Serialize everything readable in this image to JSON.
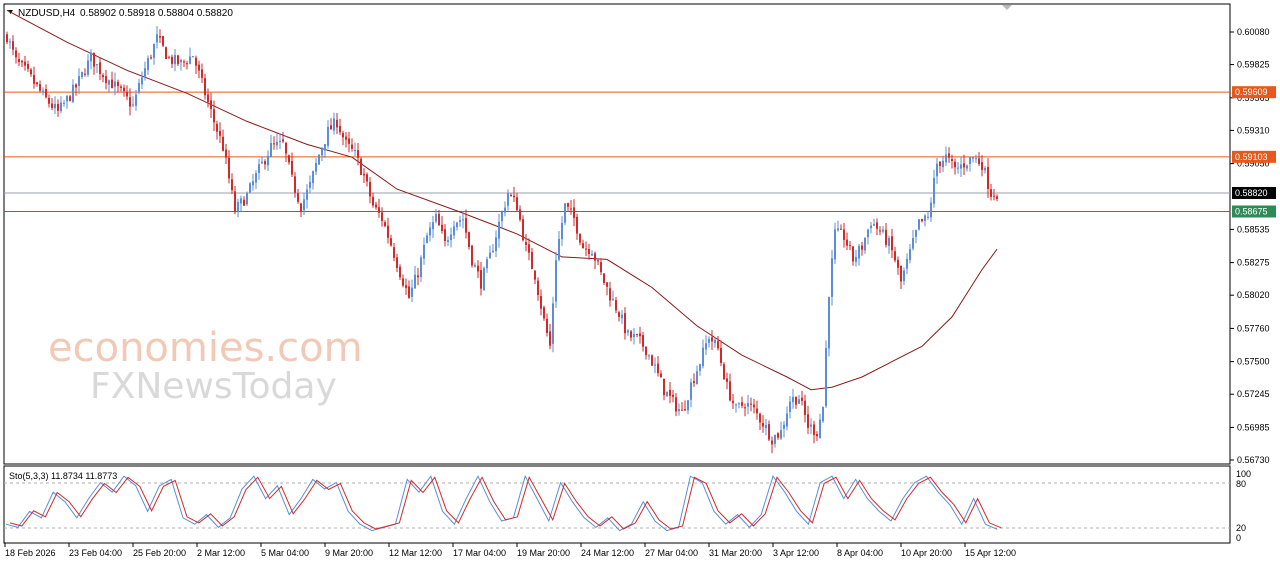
{
  "header": {
    "symbol": "NZDUSD,H4",
    "ohlc": "0.58902 0.58918 0.58804 0.58820"
  },
  "oscillator": {
    "label": "Sto(5,3,3) 11.8734 11.8773",
    "ticks": [
      "100",
      "80",
      "20",
      "0"
    ]
  },
  "watermark": {
    "line1": "economies.com",
    "line2": "FXNewsToday"
  },
  "price_axis_labels": [
    "0.60080",
    "0.59825",
    "0.59565",
    "0.59310",
    "0.59050",
    "0.58535",
    "0.58275",
    "0.58020",
    "0.57760",
    "0.57500",
    "0.57245",
    "0.56985",
    "0.56730"
  ],
  "time_axis_labels": [
    "18 Feb 2026",
    "23 Feb 04:00",
    "25 Feb 20:00",
    "2 Mar 12:00",
    "5 Mar 04:00",
    "9 Mar 20:00",
    "12 Mar 12:00",
    "17 Mar 04:00",
    "19 Mar 20:00",
    "24 Mar 12:00",
    "27 Mar 04:00",
    "31 Mar 20:00",
    "3 Apr 12:00",
    "8 Apr 04:00",
    "10 Apr 20:00",
    "15 Apr 12:00"
  ],
  "levels": [
    {
      "value": 0.59609,
      "label": "0.59609",
      "color": "#e8581c"
    },
    {
      "value": 0.59103,
      "label": "0.59103",
      "color": "#e8581c"
    },
    {
      "value": 0.5882,
      "label": "0.58820",
      "color": "#000000"
    },
    {
      "value": 0.58675,
      "label": "0.58675",
      "color": "#2e8b57"
    }
  ],
  "colors": {
    "bull": "#5b8dd9",
    "bear": "#d12a2a",
    "ma": "#8b1a1a",
    "stoch_main": "#5b8dd9",
    "stoch_signal": "#d12a2a"
  },
  "chart_data": {
    "type": "candlestick",
    "timeframe": "H4",
    "ylim": [
      0.5673,
      0.6008
    ],
    "path": [
      [
        0,
        0.6005
      ],
      [
        3,
        0.5985
      ],
      [
        7,
        0.5975
      ],
      [
        12,
        0.5958
      ],
      [
        17,
        0.5945
      ],
      [
        23,
        0.5965
      ],
      [
        28,
        0.5988
      ],
      [
        32,
        0.5975
      ],
      [
        37,
        0.5963
      ],
      [
        42,
        0.595
      ],
      [
        45,
        0.5973
      ],
      [
        50,
        0.6003
      ],
      [
        54,
        0.5987
      ],
      [
        58,
        0.5983
      ],
      [
        62,
        0.599
      ],
      [
        66,
        0.596
      ],
      [
        69,
        0.5938
      ],
      [
        72,
        0.5918
      ],
      [
        76,
        0.5868
      ],
      [
        80,
        0.588
      ],
      [
        84,
        0.59
      ],
      [
        88,
        0.5918
      ],
      [
        92,
        0.592
      ],
      [
        95,
        0.5892
      ],
      [
        98,
        0.5872
      ],
      [
        101,
        0.5888
      ],
      [
        104,
        0.5912
      ],
      [
        107,
        0.593
      ],
      [
        110,
        0.5938
      ],
      [
        113,
        0.592
      ],
      [
        116,
        0.5912
      ],
      [
        119,
        0.5895
      ],
      [
        122,
        0.5872
      ],
      [
        125,
        0.5862
      ],
      [
        128,
        0.5842
      ],
      [
        131,
        0.582
      ],
      [
        134,
        0.58
      ],
      [
        137,
        0.582
      ],
      [
        140,
        0.5848
      ],
      [
        143,
        0.5862
      ],
      [
        146,
        0.5842
      ],
      [
        149,
        0.586
      ],
      [
        152,
        0.5862
      ],
      [
        155,
        0.583
      ],
      [
        158,
        0.5812
      ],
      [
        161,
        0.5832
      ],
      [
        164,
        0.5858
      ],
      [
        167,
        0.5882
      ],
      [
        170,
        0.5872
      ],
      [
        173,
        0.5838
      ],
      [
        176,
        0.5818
      ],
      [
        179,
        0.5782
      ],
      [
        181,
        0.5762
      ],
      [
        183,
        0.5832
      ],
      [
        186,
        0.5872
      ],
      [
        189,
        0.5862
      ],
      [
        192,
        0.584
      ],
      [
        195,
        0.5838
      ],
      [
        198,
        0.5818
      ],
      [
        201,
        0.5802
      ],
      [
        204,
        0.5788
      ],
      [
        207,
        0.577
      ],
      [
        210,
        0.5768
      ],
      [
        213,
        0.576
      ],
      [
        216,
        0.5745
      ],
      [
        219,
        0.5728
      ],
      [
        222,
        0.5718
      ],
      [
        225,
        0.571
      ],
      [
        228,
        0.5732
      ],
      [
        231,
        0.575
      ],
      [
        234,
        0.577
      ],
      [
        237,
        0.576
      ],
      [
        240,
        0.573
      ],
      [
        243,
        0.5712
      ],
      [
        246,
        0.5718
      ],
      [
        249,
        0.5712
      ],
      [
        252,
        0.5702
      ],
      [
        255,
        0.569
      ],
      [
        258,
        0.5695
      ],
      [
        261,
        0.572
      ],
      [
        264,
        0.5722
      ],
      [
        267,
        0.57
      ],
      [
        270,
        0.5695
      ],
      [
        272,
        0.5715
      ],
      [
        274,
        0.5805
      ],
      [
        276,
        0.585
      ],
      [
        279,
        0.5848
      ],
      [
        282,
        0.583
      ],
      [
        285,
        0.584
      ],
      [
        288,
        0.586
      ],
      [
        291,
        0.5852
      ],
      [
        294,
        0.5842
      ],
      [
        296,
        0.583
      ],
      [
        298,
        0.5812
      ],
      [
        301,
        0.5835
      ],
      [
        304,
        0.5858
      ],
      [
        307,
        0.5862
      ],
      [
        310,
        0.5905
      ],
      [
        313,
        0.591
      ],
      [
        316,
        0.59
      ],
      [
        319,
        0.5905
      ],
      [
        322,
        0.591
      ],
      [
        325,
        0.5905
      ],
      [
        328,
        0.5882
      ],
      [
        330,
        0.5882
      ]
    ],
    "ma_path": [
      [
        0,
        0.6025
      ],
      [
        20,
        0.6
      ],
      [
        40,
        0.5978
      ],
      [
        60,
        0.596
      ],
      [
        80,
        0.5938
      ],
      [
        100,
        0.592
      ],
      [
        115,
        0.591
      ],
      [
        130,
        0.5885
      ],
      [
        150,
        0.5868
      ],
      [
        170,
        0.585
      ],
      [
        185,
        0.5832
      ],
      [
        200,
        0.583
      ],
      [
        215,
        0.5808
      ],
      [
        230,
        0.5778
      ],
      [
        245,
        0.5755
      ],
      [
        260,
        0.5738
      ],
      [
        268,
        0.5728
      ],
      [
        275,
        0.573
      ],
      [
        285,
        0.5738
      ],
      [
        295,
        0.575
      ],
      [
        305,
        0.5762
      ],
      [
        315,
        0.5785
      ],
      [
        325,
        0.5822
      ],
      [
        330,
        0.5838
      ]
    ],
    "stoch_path": [
      [
        0,
        20
      ],
      [
        4,
        15
      ],
      [
        8,
        40
      ],
      [
        12,
        30
      ],
      [
        16,
        70
      ],
      [
        20,
        55
      ],
      [
        24,
        30
      ],
      [
        28,
        60
      ],
      [
        32,
        85
      ],
      [
        36,
        70
      ],
      [
        40,
        95
      ],
      [
        44,
        80
      ],
      [
        48,
        40
      ],
      [
        52,
        80
      ],
      [
        56,
        90
      ],
      [
        60,
        30
      ],
      [
        64,
        20
      ],
      [
        68,
        35
      ],
      [
        72,
        15
      ],
      [
        76,
        30
      ],
      [
        80,
        75
      ],
      [
        84,
        95
      ],
      [
        88,
        60
      ],
      [
        92,
        80
      ],
      [
        96,
        35
      ],
      [
        100,
        60
      ],
      [
        104,
        90
      ],
      [
        108,
        75
      ],
      [
        112,
        85
      ],
      [
        116,
        40
      ],
      [
        120,
        20
      ],
      [
        124,
        10
      ],
      [
        128,
        15
      ],
      [
        132,
        20
      ],
      [
        136,
        90
      ],
      [
        140,
        70
      ],
      [
        144,
        95
      ],
      [
        148,
        40
      ],
      [
        152,
        20
      ],
      [
        156,
        60
      ],
      [
        160,
        95
      ],
      [
        164,
        55
      ],
      [
        168,
        25
      ],
      [
        172,
        30
      ],
      [
        176,
        95
      ],
      [
        180,
        60
      ],
      [
        184,
        25
      ],
      [
        188,
        85
      ],
      [
        192,
        55
      ],
      [
        196,
        30
      ],
      [
        200,
        15
      ],
      [
        204,
        30
      ],
      [
        208,
        10
      ],
      [
        212,
        20
      ],
      [
        216,
        55
      ],
      [
        220,
        25
      ],
      [
        224,
        10
      ],
      [
        228,
        15
      ],
      [
        232,
        95
      ],
      [
        236,
        85
      ],
      [
        240,
        40
      ],
      [
        244,
        20
      ],
      [
        248,
        35
      ],
      [
        252,
        15
      ],
      [
        256,
        35
      ],
      [
        260,
        95
      ],
      [
        264,
        70
      ],
      [
        268,
        40
      ],
      [
        272,
        20
      ],
      [
        276,
        85
      ],
      [
        280,
        95
      ],
      [
        284,
        60
      ],
      [
        288,
        90
      ],
      [
        292,
        60
      ],
      [
        296,
        40
      ],
      [
        300,
        25
      ],
      [
        304,
        60
      ],
      [
        308,
        85
      ],
      [
        312,
        95
      ],
      [
        316,
        70
      ],
      [
        320,
        50
      ],
      [
        324,
        20
      ],
      [
        328,
        60
      ],
      [
        332,
        20
      ],
      [
        336,
        12
      ]
    ]
  }
}
